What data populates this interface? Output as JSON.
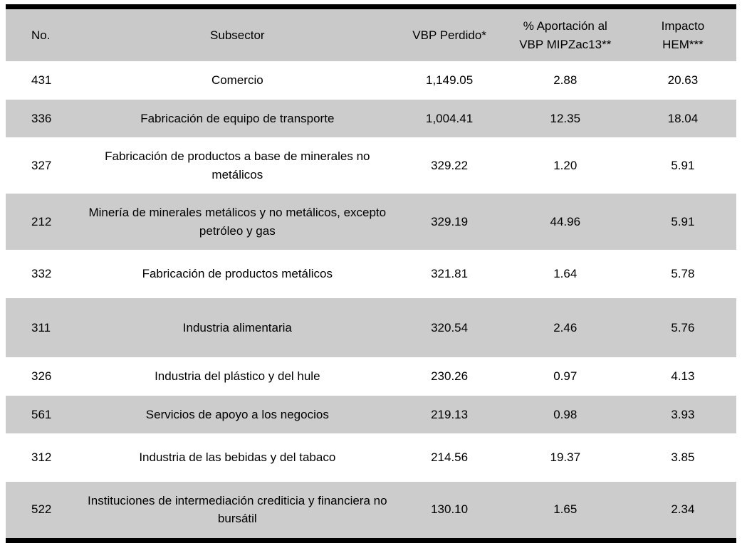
{
  "table": {
    "headers": [
      "No.",
      "Subsector",
      "VBP Perdido*",
      "% Aportación al\nVBP MIPZac13**",
      "Impacto\nHEM***"
    ],
    "column_keys": [
      "no",
      "subsector",
      "vbp-perdido",
      "aportacion-vbp",
      "impacto-hem"
    ],
    "rows": [
      {
        "no": "431",
        "subsector": "Comercio",
        "vbp_perdido": "1,149.05",
        "aportacion": "2.88",
        "impacto": "20.63"
      },
      {
        "no": "336",
        "subsector": "Fabricación de equipo de transporte",
        "vbp_perdido": "1,004.41",
        "aportacion": "12.35",
        "impacto": "18.04"
      },
      {
        "no": "327",
        "subsector": "Fabricación de productos a base de minerales no metálicos",
        "vbp_perdido": "329.22",
        "aportacion": "1.20",
        "impacto": "5.91"
      },
      {
        "no": "212",
        "subsector": "Minería de minerales metálicos y no metálicos, excepto petróleo y gas",
        "vbp_perdido": "329.19",
        "aportacion": "44.96",
        "impacto": "5.91"
      },
      {
        "no": "332",
        "subsector": "Fabricación de productos metálicos",
        "vbp_perdido": "321.81",
        "aportacion": "1.64",
        "impacto": "5.78",
        "roomy": true
      },
      {
        "no": "311",
        "subsector": "Industria alimentaria",
        "vbp_perdido": "320.54",
        "aportacion": "2.46",
        "impacto": "5.76",
        "tall": true
      },
      {
        "no": "326",
        "subsector": "Industria del plástico y del hule",
        "vbp_perdido": "230.26",
        "aportacion": "0.97",
        "impacto": "4.13"
      },
      {
        "no": "561",
        "subsector": "Servicios de apoyo a los negocios",
        "vbp_perdido": "219.13",
        "aportacion": "0.98",
        "impacto": "3.93"
      },
      {
        "no": "312",
        "subsector": "Industria de las bebidas y del tabaco",
        "vbp_perdido": "214.56",
        "aportacion": "19.37",
        "impacto": "3.85",
        "roomy": true
      },
      {
        "no": "522",
        "subsector": "Instituciones de intermediación crediticia y financiera no bursátil",
        "vbp_perdido": "130.10",
        "aportacion": "1.65",
        "impacto": "2.34"
      }
    ],
    "colors": {
      "row_shade": "#cccccc",
      "header_shade": "#c9c9c9",
      "border": "#000000"
    }
  },
  "chart_data": {
    "type": "table",
    "title": "",
    "columns": [
      "No.",
      "Subsector",
      "VBP Perdido*",
      "% Aportación al VBP MIPZac13**",
      "Impacto HEM***"
    ],
    "rows": [
      [
        "431",
        "Comercio",
        1149.05,
        2.88,
        20.63
      ],
      [
        "336",
        "Fabricación de equipo de transporte",
        1004.41,
        12.35,
        18.04
      ],
      [
        "327",
        "Fabricación de productos a base de minerales no metálicos",
        329.22,
        1.2,
        5.91
      ],
      [
        "212",
        "Minería de minerales metálicos y no metálicos, excepto petróleo y gas",
        329.19,
        44.96,
        5.91
      ],
      [
        "332",
        "Fabricación de productos metálicos",
        321.81,
        1.64,
        5.78
      ],
      [
        "311",
        "Industria alimentaria",
        320.54,
        2.46,
        5.76
      ],
      [
        "326",
        "Industria del plástico y del hule",
        230.26,
        0.97,
        4.13
      ],
      [
        "561",
        "Servicios de apoyo a los negocios",
        219.13,
        0.98,
        3.93
      ],
      [
        "312",
        "Industria de las bebidas y del tabaco",
        214.56,
        19.37,
        3.85
      ],
      [
        "522",
        "Instituciones de intermediación crediticia y financiera no bursátil",
        130.1,
        1.65,
        2.34
      ]
    ]
  }
}
